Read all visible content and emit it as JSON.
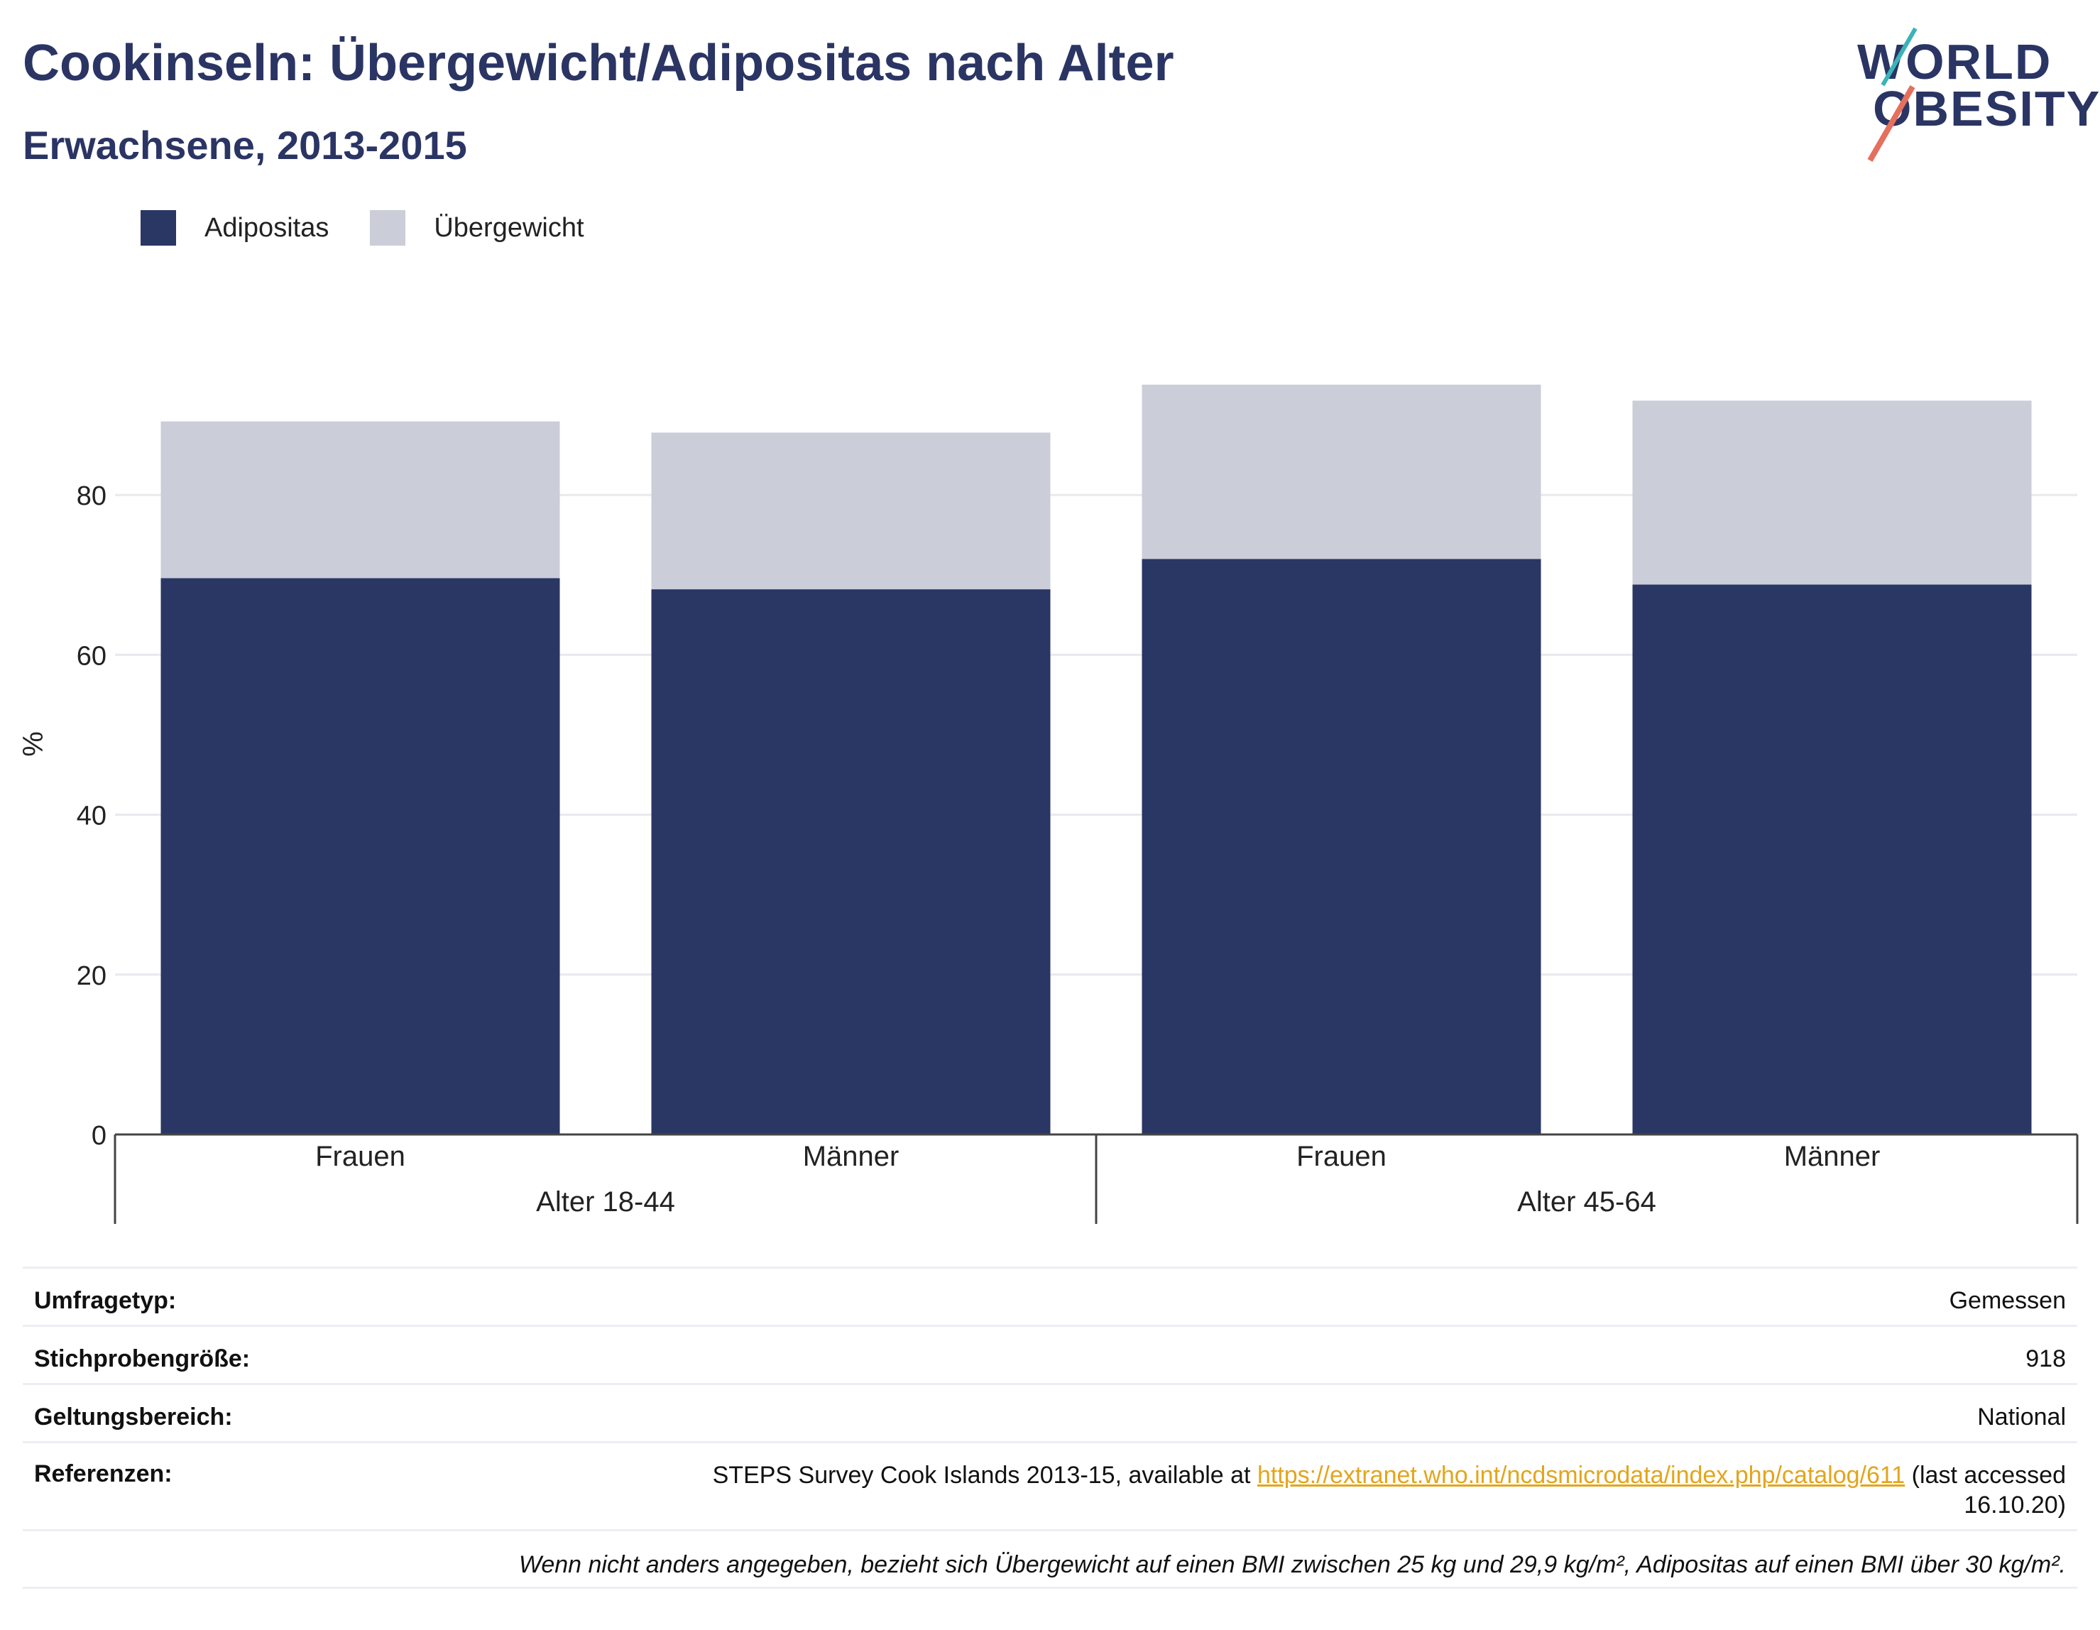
{
  "header": {
    "title": "Cookinseln: Übergewicht/Adipositas nach Alter",
    "subtitle": "Erwachsene, 2013-2015"
  },
  "logo": {
    "line1": "WORLD",
    "line2": "OBESITY"
  },
  "colors": {
    "adipositas": "#2a3664",
    "uebergewicht": "#cbcdd9",
    "text": "#2a3564"
  },
  "chart_data": {
    "type": "bar",
    "stacked": true,
    "title": "Cookinseln: Übergewicht/Adipositas nach Alter",
    "subtitle": "Erwachsene, 2013-2015",
    "ylabel": "%",
    "ylim": [
      0,
      100
    ],
    "yticks": [
      0,
      20,
      40,
      60,
      80
    ],
    "grid": true,
    "legend_position": "top-left",
    "categories": [
      "Frauen",
      "Männer",
      "Frauen",
      "Männer"
    ],
    "groups": [
      {
        "label": "Alter 18-44",
        "categories": [
          "Frauen",
          "Männer"
        ]
      },
      {
        "label": "Alter 45-64",
        "categories": [
          "Frauen",
          "Männer"
        ]
      }
    ],
    "series": [
      {
        "name": "Adipositas",
        "values": [
          69.6,
          68.2,
          72.0,
          68.8
        ]
      },
      {
        "name": "Übergewicht",
        "values": [
          19.6,
          19.6,
          21.8,
          23.0
        ]
      }
    ]
  },
  "table": {
    "rows": [
      {
        "key": "Umfragetyp:",
        "value": "Gemessen"
      },
      {
        "key": "Stichprobengröße:",
        "value": "918"
      },
      {
        "key": "Geltungsbereich:",
        "value": "National"
      }
    ],
    "references": {
      "key": "Referenzen:",
      "text_before": "STEPS Survey Cook Islands 2013-15, available at",
      "link": "https://extranet.who.int/ncdsmicrodata/index.php/catalog/611",
      "text_after": "(last accessed 16.10.20)"
    },
    "note": "Wenn nicht anders angegeben, bezieht sich Übergewicht auf einen BMI zwischen 25 kg und 29,9 kg/m², Adipositas auf einen BMI über 30 kg/m²."
  }
}
